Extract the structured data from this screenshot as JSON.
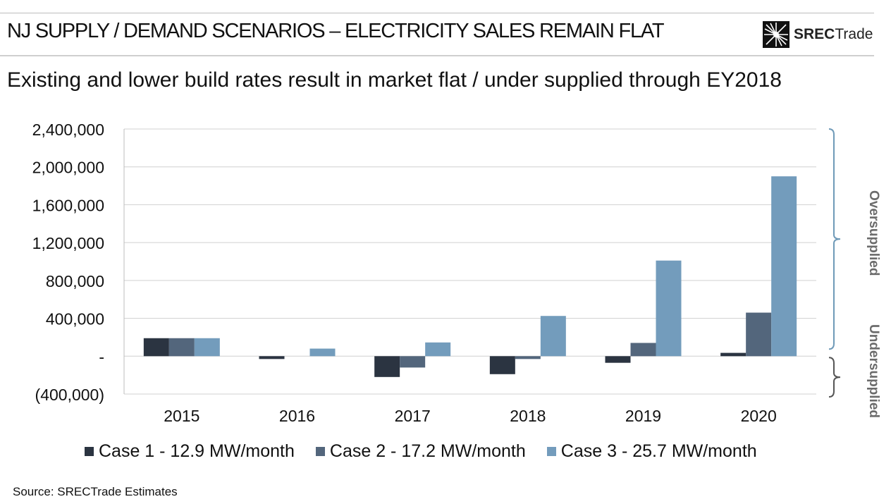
{
  "header": {
    "title": "NJ SUPPLY / DEMAND SCENARIOS – ELECTRICITY SALES REMAIN FLAT",
    "logo_bold": "SREC",
    "logo_light": "Trade"
  },
  "subtitle": "Existing and lower build rates result in market flat / under supplied through EY2018",
  "side_labels": {
    "oversupplied": "Oversupplied",
    "undersupplied": "Undersupplied"
  },
  "source": "Source: SRECTrade Estimates",
  "colors": {
    "case1": "#2b3441",
    "case2": "#53667c",
    "case3": "#739cbc",
    "grid": "#d0d0d0",
    "bracket_over": "#6f9ab8",
    "bracket_under": "#555555"
  },
  "chart_data": {
    "type": "bar",
    "categories": [
      "2015",
      "2016",
      "2017",
      "2018",
      "2019",
      "2020"
    ],
    "series": [
      {
        "name": "Case 1 - 12.9 MW/month",
        "values": [
          190000,
          -30000,
          -220000,
          -190000,
          -70000,
          35000
        ]
      },
      {
        "name": "Case 2 - 17.2 MW/month",
        "values": [
          190000,
          0,
          -120000,
          -30000,
          140000,
          460000
        ]
      },
      {
        "name": "Case 3 - 25.7 MW/month",
        "values": [
          190000,
          80000,
          145000,
          425000,
          1010000,
          1900000
        ]
      }
    ],
    "ylim": [
      -400000,
      2400000
    ],
    "yticks": [
      -400000,
      0,
      400000,
      800000,
      1200000,
      1600000,
      2000000,
      2400000
    ],
    "ytick_labels": [
      "(400,000)",
      "-",
      "400,000",
      "800,000",
      "1,200,000",
      "1,600,000",
      "2,000,000",
      "2,400,000"
    ],
    "grid": true,
    "legend_position": "bottom",
    "title": "",
    "xlabel": "",
    "ylabel": ""
  }
}
